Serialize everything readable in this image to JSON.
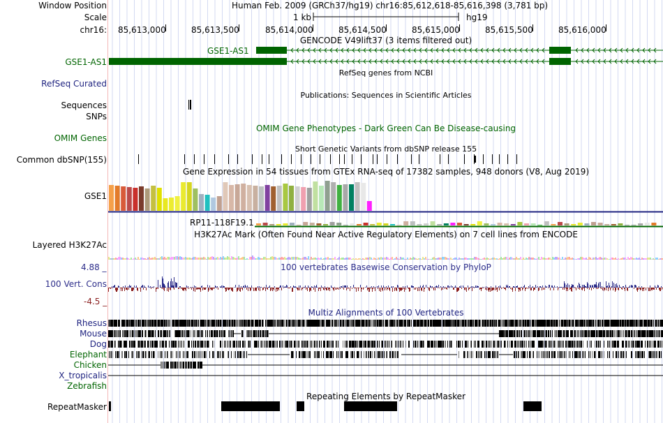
{
  "header": {
    "window_position_label": "Window Position",
    "window_position_value": "Human Feb. 2009 (GRCh37/hg19)   chr16:85,612,618-85,616,398 (3,781 bp)",
    "scale_label": "Scale",
    "scale_value": "1 kb",
    "assembly": "hg19",
    "chrom_label": "chr16:",
    "coordinates": [
      "85,613,000",
      "85,613,500",
      "85,614,000",
      "85,614,500",
      "85,615,000",
      "85,615,500",
      "85,616,000"
    ]
  },
  "tracks": {
    "gencode": {
      "title": "GENCODE V49lift37 (3 items filtered out)",
      "feature_label": "GSE1-AS1",
      "left_label": "GSE1-AS1"
    },
    "refseq": {
      "title": "RefSeq genes from NCBI",
      "left_label": "RefSeq Curated"
    },
    "publications": {
      "title": "Publications: Sequences in Scientific Articles",
      "left_label_1": "Sequences",
      "left_label_2": "SNPs"
    },
    "omim": {
      "title": "OMIM Gene Phenotypes - Dark Green Can Be Disease-causing",
      "left_label": "OMIM Genes"
    },
    "dbsnp": {
      "title": "Short Genetic Variants from dbSNP release 155",
      "left_label": "Common dbSNP(155)"
    },
    "gtex": {
      "title": "Gene Expression in 54 tissues from GTEx RNA-seq of 17382 samples, 948 donors (V8, Aug 2019)",
      "left_label": "GSE1",
      "feature_label": "RP11-118F19.1",
      "bar_levels": [
        0.8,
        0.78,
        0.76,
        0.74,
        0.72,
        0.75,
        0.7,
        0.78,
        0.72,
        0.4,
        0.42,
        0.45,
        0.9,
        0.9,
        0.7,
        0.52,
        0.5,
        0.42,
        0.45,
        0.9,
        0.8,
        0.82,
        0.84,
        0.8,
        0.78,
        0.76,
        0.8,
        0.76,
        0.78,
        0.84,
        0.78,
        0.76,
        0.74,
        0.72,
        0.92,
        0.78,
        0.94,
        0.9,
        0.8,
        0.82,
        0.82,
        0.9,
        0.88,
        0.3
      ],
      "bar_colors": [
        "#f5a04a",
        "#e37b2a",
        "#d85a3a",
        "#bb4a4a",
        "#c9302c",
        "#7a3b2c",
        "#ad9a7a",
        "#c4c040",
        "#e0e000",
        "#e8e820",
        "#ecec30",
        "#f0f040",
        "#eaea30",
        "#d6d620",
        "#9fc060",
        "#a0b0c0",
        "#20c0c0",
        "#b0c8e0",
        "#c0a090",
        "#e0c8b8",
        "#d8b8a8",
        "#c8a898",
        "#d0b0a0",
        "#d8c0b0",
        "#c8b0a0",
        "#bcc0c0",
        "#8040a0",
        "#a06030",
        "#c0c0c0",
        "#a8c840",
        "#90b040",
        "#d0d0d0",
        "#f0a0b0",
        "#a0a0a0",
        "#c0e0a0",
        "#b8e8b8",
        "#90a090",
        "#b0b0b0",
        "#40b040",
        "#a8a8a8",
        "#008060",
        "#c0c0c0",
        "#e8e8e8",
        "#ff20ff"
      ]
    },
    "h3k27ac": {
      "title": "H3K27Ac Mark (Often Found Near Active Regulatory Elements) on 7 cell lines from ENCODE",
      "left_label": "Layered H3K27Ac"
    },
    "conservation": {
      "title": "100 vertebrates Basewise Conservation by PhyloP",
      "left_label": "100 Vert. Cons",
      "max": "4.88 _",
      "min": "-4.5 _"
    },
    "multiz": {
      "title": "Multiz Alignments of 100 Vertebrates",
      "species": [
        "Rhesus",
        "Mouse",
        "Dog",
        "Elephant",
        "Chicken",
        "X_tropicalis",
        "Zebrafish"
      ]
    },
    "repeatmasker": {
      "title": "Repeating Elements by RepeatMasker",
      "left_label": "RepeatMasker"
    }
  },
  "colors": {
    "gene_green": "#006400",
    "label_blue": "#1f2380",
    "label_green": "#006400",
    "cons_blue": "#2d2d8a",
    "cons_red": "#8b2020",
    "grid": "#cfd6f0"
  }
}
